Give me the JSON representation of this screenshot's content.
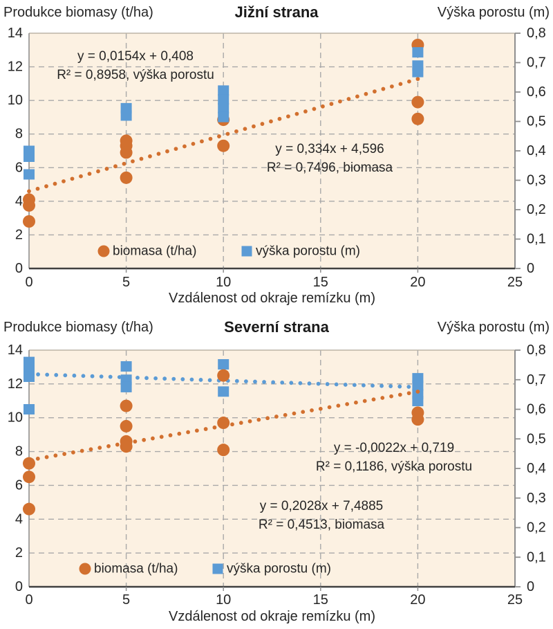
{
  "colors": {
    "biomasa": "#d2702f",
    "vyska": "#5b9bd5",
    "plot_bg": "#fcf1e2",
    "grid": "#a9a9a9",
    "axis_dark": "#404040",
    "axis_side": "#8f8f8f",
    "axis_top": "#bcb4a6",
    "text": "#262626"
  },
  "chart_data": [
    {
      "type": "scatter",
      "title": "Jižní strana",
      "x_axis": {
        "title": "Vzdálenost od okraje remízku (m)",
        "min": 0,
        "max": 25,
        "tick_values": [
          0,
          5,
          10,
          15,
          20,
          25
        ],
        "tick_labels": [
          "0",
          "5",
          "10",
          "15",
          "20",
          "25"
        ]
      },
      "left_axis": {
        "title": "Produkce biomasy (t/ha)",
        "min": 0,
        "max": 14,
        "tick_values": [
          0,
          2,
          4,
          6,
          8,
          10,
          12,
          14
        ],
        "tick_labels": [
          "0",
          "2",
          "4",
          "6",
          "8",
          "10",
          "12",
          "14"
        ]
      },
      "right_axis": {
        "title": "Výška porostu (m)",
        "min": 0,
        "max": 0.8,
        "tick_values": [
          0,
          0.1,
          0.2,
          0.3,
          0.4,
          0.5,
          0.6,
          0.7,
          0.8
        ],
        "tick_labels": [
          "0",
          "0,1",
          "0,2",
          "0,3",
          "0,4",
          "0,5",
          "0,6",
          "0,7",
          "0,8"
        ]
      },
      "grid": true,
      "series": [
        {
          "name": "biomasa (t/ha)",
          "axis": "left",
          "marker": "circle",
          "color_key": "biomasa",
          "points": [
            [
              0,
              4.1
            ],
            [
              0,
              3.75
            ],
            [
              0,
              2.8
            ],
            [
              5,
              7.6
            ],
            [
              5,
              7.3
            ],
            [
              5,
              6.9
            ],
            [
              5,
              5.4
            ],
            [
              10,
              8.85
            ],
            [
              10,
              7.3
            ],
            [
              20,
              13.3
            ],
            [
              20,
              9.9
            ],
            [
              20,
              8.9
            ]
          ],
          "trend": {
            "slope": 0.334,
            "intercept": 4.596,
            "x_start": 0,
            "x_end": 20
          }
        },
        {
          "name": "výška porostu (m)",
          "axis": "right",
          "marker": "square",
          "color_key": "vyska",
          "points": [
            [
              0,
              0.4
            ],
            [
              0,
              0.38
            ],
            [
              0,
              0.32
            ],
            [
              5,
              0.545
            ],
            [
              5,
              0.52
            ],
            [
              10,
              0.605
            ],
            [
              10,
              0.575
            ],
            [
              10,
              0.545
            ],
            [
              10,
              0.515
            ],
            [
              20,
              0.735
            ],
            [
              20,
              0.69
            ],
            [
              20,
              0.668
            ]
          ]
        }
      ],
      "annotations": [
        {
          "lines": [
            "y = 0,0154x + 0,408",
            "R² = 0,8958, výška porostu"
          ],
          "cx": 196,
          "y": 87,
          "gap": 27
        },
        {
          "lines": [
            "y = 0,334x + 4,596",
            "R² = 0,7496, biomasa"
          ],
          "cx": 477,
          "y": 221,
          "gap": 27
        }
      ],
      "legend": {
        "y": 363,
        "items": [
          {
            "label": "biomasa (t/ha)",
            "marker": "circle",
            "color_key": "biomasa",
            "x": 150
          },
          {
            "label": "výška porostu (m)",
            "marker": "square",
            "color_key": "vyska",
            "x": 357
          }
        ]
      }
    },
    {
      "type": "scatter",
      "title": "Severní strana",
      "x_axis": {
        "title": "Vzdálenost od okraje remízku (m)",
        "min": 0,
        "max": 25,
        "tick_values": [
          0,
          5,
          10,
          15,
          20,
          25
        ],
        "tick_labels": [
          "0",
          "5",
          "10",
          "15",
          "20",
          "25"
        ]
      },
      "left_axis": {
        "title": "Produkce biomasy (t/ha)",
        "min": 0,
        "max": 14,
        "tick_values": [
          0,
          2,
          4,
          6,
          8,
          10,
          12,
          14
        ],
        "tick_labels": [
          "0",
          "2",
          "4",
          "6",
          "8",
          "10",
          "12",
          "14"
        ]
      },
      "right_axis": {
        "title": "Výška porostu (m)",
        "min": 0,
        "max": 0.8,
        "tick_values": [
          0,
          0.1,
          0.2,
          0.3,
          0.4,
          0.5,
          0.6,
          0.7,
          0.8
        ],
        "tick_labels": [
          "0",
          "0,1",
          "0,2",
          "0,3",
          "0,4",
          "0,5",
          "0,6",
          "0,7",
          "0,8"
        ]
      },
      "grid": true,
      "series": [
        {
          "name": "výška porostu (m)",
          "axis": "right",
          "marker": "square",
          "color_key": "vyska",
          "points": [
            [
              0,
              0.76
            ],
            [
              0,
              0.735
            ],
            [
              0,
              0.71
            ],
            [
              0,
              0.6
            ],
            [
              5,
              0.745
            ],
            [
              5,
              0.7
            ],
            [
              5,
              0.675
            ],
            [
              10,
              0.752
            ],
            [
              10,
              0.66
            ],
            [
              20,
              0.705
            ],
            [
              20,
              0.68
            ],
            [
              20,
              0.652
            ],
            [
              20,
              0.628
            ]
          ],
          "trend": {
            "slope": -0.0022,
            "intercept": 0.719,
            "x_start": 0,
            "x_end": 20
          }
        },
        {
          "name": "biomasa (t/ha)",
          "axis": "left",
          "marker": "circle",
          "color_key": "biomasa",
          "points": [
            [
              0,
              7.3
            ],
            [
              0,
              6.5
            ],
            [
              0,
              4.6
            ],
            [
              5,
              10.7
            ],
            [
              5,
              9.5
            ],
            [
              5,
              8.6
            ],
            [
              5,
              8.3
            ],
            [
              10,
              12.5
            ],
            [
              10,
              9.7
            ],
            [
              10,
              8.1
            ],
            [
              20,
              10.3
            ],
            [
              20,
              9.9
            ]
          ],
          "trend": {
            "slope": 0.2028,
            "intercept": 7.4885,
            "x_start": 0,
            "x_end": 20
          }
        }
      ],
      "annotations": [
        {
          "lines": [
            "y = -0,0022x + 0,719",
            "R² = 0,1186, výška porostu"
          ],
          "cx": 570,
          "y": 198,
          "gap": 27
        },
        {
          "lines": [
            "y = 0,2028x + 7,4885",
            "R² = 0,4513, biomasa"
          ],
          "cx": 465,
          "y": 282,
          "gap": 27
        }
      ],
      "legend": {
        "y": 367,
        "items": [
          {
            "label": "biomasa (t/ha)",
            "marker": "circle",
            "color_key": "biomasa",
            "x": 123
          },
          {
            "label": "výška porostu (m)",
            "marker": "square",
            "color_key": "vyska",
            "x": 315
          }
        ]
      }
    }
  ]
}
